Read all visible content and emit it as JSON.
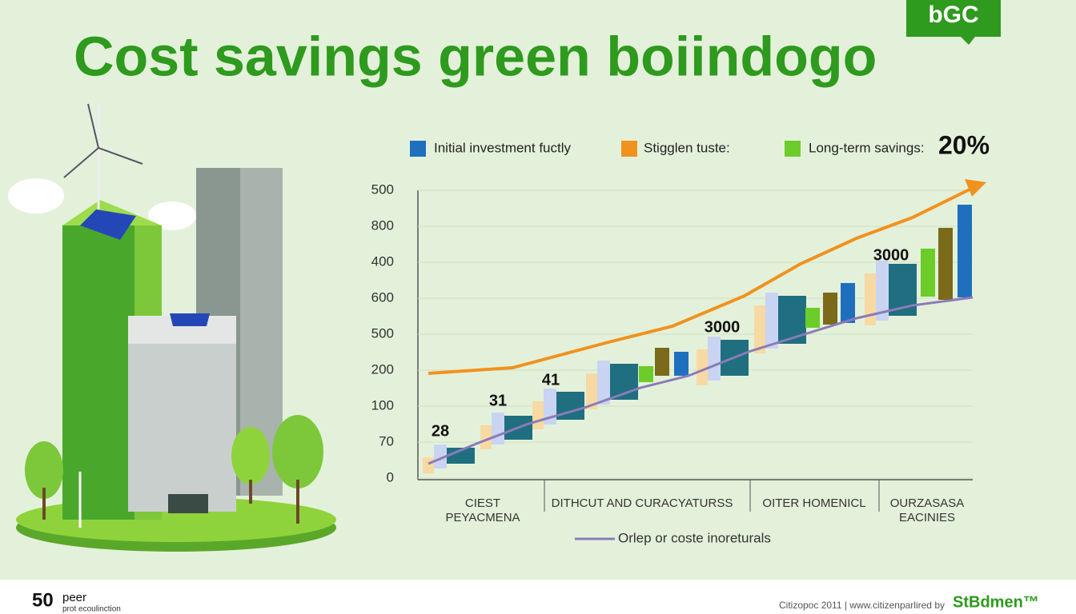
{
  "header": {
    "title": "Cost savings green boiindogo",
    "logo": "bGC"
  },
  "legend": {
    "items": [
      "Initial investment fuctly",
      "Stigglen tuste:",
      "Long-term savings:"
    ],
    "highlight": "20%"
  },
  "chart": {
    "y_labels": [
      "500",
      "800",
      "400",
      "600",
      "500",
      "200",
      "100",
      "70",
      "0"
    ],
    "data_labels": [
      "28",
      "31",
      "41",
      "3000",
      "3000"
    ],
    "categories": [
      [
        "CIEST",
        "PEYACMENA"
      ],
      [
        "DITHCUT AND CURACYATURSS"
      ],
      [
        "OITER HOMENICL"
      ],
      [
        "OURZASASA",
        "EACINIES"
      ]
    ],
    "line_legend": "Orlep or coste inoreturals"
  },
  "footer": {
    "left_big": "50",
    "left_top": "peer",
    "left_bottom": "prot ecoulinction",
    "right_text": "Citizopoc 2011 | www.citizenparlired by",
    "brand": "StBdmen™"
  }
}
